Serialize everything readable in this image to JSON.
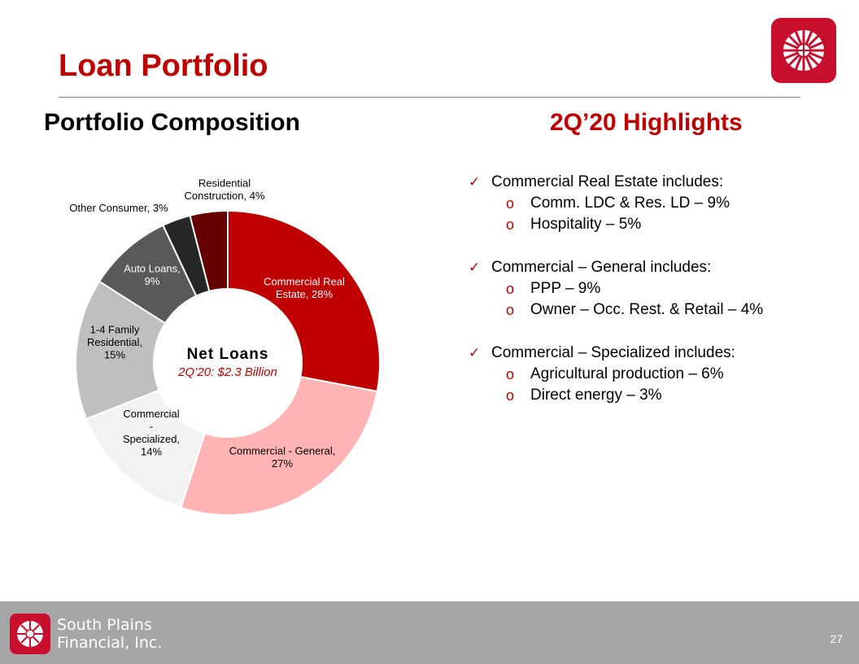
{
  "header": {
    "title": "Loan Portfolio"
  },
  "left": {
    "section_title": "Portfolio Composition"
  },
  "right": {
    "section_title": "2Q’20 Highlights",
    "groups": [
      {
        "label": "Commercial Real Estate includes:",
        "items": [
          "Comm. LDC & Res. LD – 9%",
          "Hospitality – 5%"
        ]
      },
      {
        "label": "Commercial – General includes:",
        "items": [
          "PPP – 9%",
          "Owner – Occ. Rest. & Retail – 4%"
        ]
      },
      {
        "label": "Commercial – Specialized includes:",
        "items": [
          "Agricultural production – 6%",
          "Direct energy – 3%"
        ]
      }
    ]
  },
  "chart_data": {
    "type": "pie",
    "donut": true,
    "center_title": "Net Loans",
    "center_subtitle": "2Q’20: $2.3 Billion",
    "slices": [
      {
        "label": "Commercial Real Estate, 28%",
        "value": 28,
        "color": "#c00000",
        "label_color": "#ffffff"
      },
      {
        "label": "Commercial - General, 27%",
        "value": 27,
        "color": "#ffb3b3",
        "label_color": "#000000"
      },
      {
        "label": "Commercial - Specialized, 14%",
        "value": 14,
        "color": "#f2f2f2",
        "label_color": "#000000"
      },
      {
        "label": "1-4 Family Residential, 15%",
        "value": 15,
        "color": "#bfbfbf",
        "label_color": "#000000"
      },
      {
        "label": "Auto Loans, 9%",
        "value": 9,
        "color": "#595959",
        "label_color": "#ffffff"
      },
      {
        "label": "Other Consumer, 3%",
        "value": 3,
        "color": "#262626",
        "label_color": "#000000"
      },
      {
        "label": "Residential Construction, 4%",
        "value": 4,
        "color": "#660000",
        "label_color": "#000000"
      }
    ]
  },
  "footer": {
    "company_line1": "South Plains",
    "company_line2": "Financial, Inc.",
    "page_number": "27"
  },
  "colors": {
    "accent": "#c00000",
    "brand_red": "#c8102e",
    "footer_bg": "#a6a6a6"
  }
}
